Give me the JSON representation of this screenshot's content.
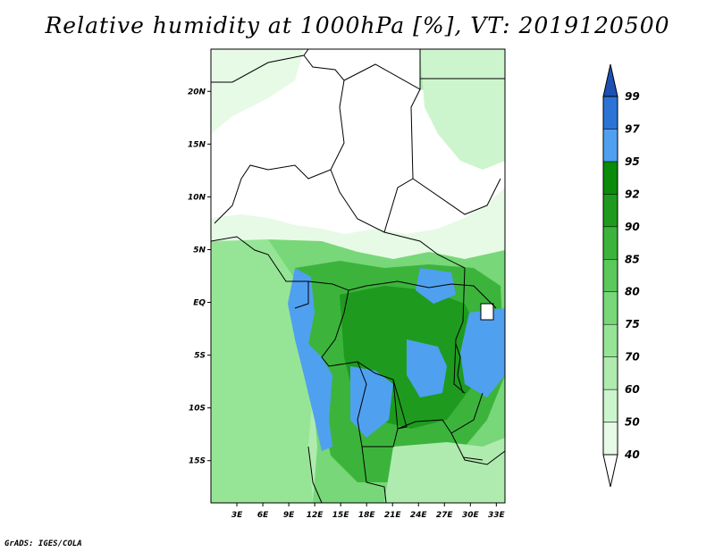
{
  "title": "Relative humidity at 1000hPa [%], VT: 2019120500",
  "credit": "GrADS: IGES/COLA",
  "map": {
    "type": "filled-contour",
    "variable": "Relative humidity",
    "level": "1000hPa",
    "units": "%",
    "valid_time": "2019120500",
    "lon_range": [
      0,
      34
    ],
    "lat_range": [
      -19,
      24
    ],
    "lat_ticks": [
      {
        "value": 20,
        "label": "20N"
      },
      {
        "value": 15,
        "label": "15N"
      },
      {
        "value": 10,
        "label": "10N"
      },
      {
        "value": 5,
        "label": "5N"
      },
      {
        "value": 0,
        "label": "EQ"
      },
      {
        "value": -5,
        "label": "5S"
      },
      {
        "value": -10,
        "label": "10S"
      },
      {
        "value": -15,
        "label": "15S"
      }
    ],
    "lon_ticks": [
      {
        "value": 3,
        "label": "3E"
      },
      {
        "value": 6,
        "label": "6E"
      },
      {
        "value": 9,
        "label": "9E"
      },
      {
        "value": 12,
        "label": "12E"
      },
      {
        "value": 15,
        "label": "15E"
      },
      {
        "value": 18,
        "label": "18E"
      },
      {
        "value": 21,
        "label": "21E"
      },
      {
        "value": 24,
        "label": "24E"
      },
      {
        "value": 27,
        "label": "27E"
      },
      {
        "value": 30,
        "label": "30E"
      },
      {
        "value": 33,
        "label": "33E"
      }
    ]
  },
  "colorbar": {
    "levels": [
      "40",
      "50",
      "60",
      "70",
      "75",
      "80",
      "85",
      "90",
      "92",
      "95",
      "97",
      "99"
    ],
    "colors": [
      "#ffffff",
      "#e6fae6",
      "#cdf5cd",
      "#afebaf",
      "#96e596",
      "#78d778",
      "#5ac85a",
      "#3cb43c",
      "#1e9b1e",
      "#0a8c0a",
      "#50a0f0",
      "#2c73d6",
      "#1e50b4"
    ]
  }
}
